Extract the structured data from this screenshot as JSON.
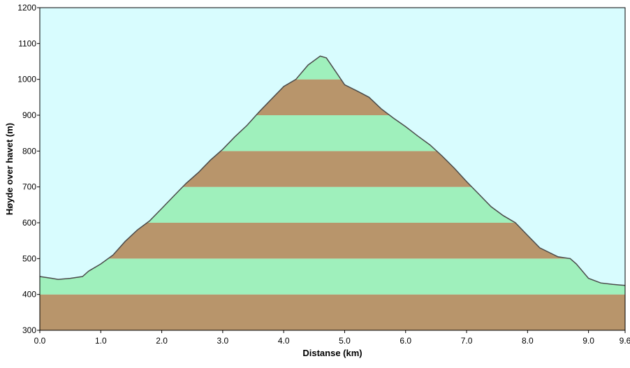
{
  "chart_data": {
    "type": "area",
    "title": "",
    "xlabel": "Distanse   (km)",
    "ylabel": "Høyde over havet (m)",
    "xlim": [
      0,
      9.6
    ],
    "ylim": [
      300,
      1200
    ],
    "x_ticks": [
      0,
      1,
      2,
      3,
      4,
      5,
      6,
      7,
      8,
      9,
      9.6
    ],
    "x_tick_labels": [
      "0.0",
      "1.0",
      "2.0",
      "3.0",
      "4.0",
      "5.0",
      "6.0",
      "7.0",
      "8.0",
      "9.0",
      "9.6"
    ],
    "y_ticks": [
      300,
      400,
      500,
      600,
      700,
      800,
      900,
      1000,
      1100,
      1200
    ],
    "y_tick_labels": [
      "300",
      "400",
      "500",
      "600",
      "700",
      "800",
      "900",
      "1000",
      "1100",
      "1200"
    ],
    "grid": false,
    "band_interval": 100,
    "series": [
      {
        "x": [
          0.0,
          0.2,
          0.3,
          0.5,
          0.7,
          0.8,
          1.0,
          1.2,
          1.4,
          1.6,
          1.8,
          2.0,
          2.2,
          2.4,
          2.6,
          2.8,
          3.0,
          3.2,
          3.4,
          3.6,
          3.8,
          4.0,
          4.2,
          4.4,
          4.6,
          4.7,
          5.0,
          5.2,
          5.4,
          5.6,
          5.8,
          6.0,
          6.2,
          6.4,
          6.6,
          6.8,
          7.0,
          7.2,
          7.4,
          7.6,
          7.8,
          8.0,
          8.2,
          8.5,
          8.7,
          8.8,
          9.0,
          9.2,
          9.4,
          9.6
        ],
        "y": [
          450,
          445,
          442,
          445,
          450,
          465,
          485,
          510,
          548,
          580,
          605,
          640,
          675,
          710,
          740,
          775,
          805,
          840,
          872,
          910,
          945,
          980,
          1000,
          1040,
          1065,
          1060,
          985,
          968,
          950,
          918,
          892,
          868,
          842,
          817,
          786,
          752,
          715,
          680,
          645,
          620,
          600,
          565,
          530,
          505,
          500,
          485,
          445,
          432,
          428,
          425
        ]
      }
    ],
    "colors": {
      "background": "#d8fcfe",
      "band_light": "#9ff0bc",
      "band_dark": "#b8956b",
      "line": "#4a4a4a",
      "axis": "#000000"
    }
  }
}
